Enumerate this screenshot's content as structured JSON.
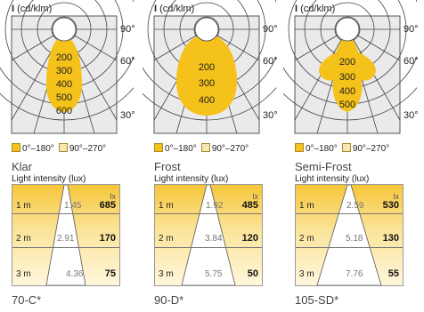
{
  "variants": [
    {
      "polar": {
        "unit_symbol": "I",
        "unit_text": "(cd/klm)",
        "angles": [
          "90°",
          "60°",
          "30°"
        ],
        "rings": [
          "200",
          "300",
          "400",
          "500",
          "600"
        ],
        "legend": [
          "0°–180°",
          "90°–270°"
        ],
        "colors": {
          "distribution": "#f4c21a",
          "background": "#eaeaea"
        }
      },
      "name": "Klar",
      "intensity": {
        "title": "Light intensity (lux)",
        "unit": "lx",
        "rows": [
          {
            "distance": "1 m",
            "diameter": "1.45",
            "lux": "685"
          },
          {
            "distance": "2 m",
            "diameter": "2.91",
            "lux": "170"
          },
          {
            "distance": "3 m",
            "diameter": "4.36",
            "lux": "75"
          }
        ]
      },
      "code": "70-C*"
    },
    {
      "polar": {
        "unit_symbol": "I",
        "unit_text": "(cd/klm)",
        "angles": [
          "90°",
          "60°",
          "30°"
        ],
        "rings": [
          "200",
          "300",
          "400"
        ],
        "legend": [
          "0°–180°",
          "90°–270°"
        ],
        "colors": {
          "distribution": "#f4c21a",
          "background": "#eaeaea"
        }
      },
      "name": "Frost",
      "intensity": {
        "title": "Light intensity (lux)",
        "unit": "lx",
        "rows": [
          {
            "distance": "1 m",
            "diameter": "1.92",
            "lux": "485"
          },
          {
            "distance": "2 m",
            "diameter": "3.84",
            "lux": "120"
          },
          {
            "distance": "3 m",
            "diameter": "5.75",
            "lux": "50"
          }
        ]
      },
      "code": "90-D*"
    },
    {
      "polar": {
        "unit_symbol": "I",
        "unit_text": "(cd/klm)",
        "angles": [
          "90°",
          "60°",
          "30°"
        ],
        "rings": [
          "200",
          "300",
          "400",
          "500"
        ],
        "legend": [
          "0°–180°",
          "90°–270°"
        ],
        "colors": {
          "distribution": "#f4c21a",
          "background": "#eaeaea"
        }
      },
      "name": "Semi-Frost",
      "intensity": {
        "title": "Light intensity (lux)",
        "unit": "lx",
        "rows": [
          {
            "distance": "1 m",
            "diameter": "2.59",
            "lux": "530"
          },
          {
            "distance": "2 m",
            "diameter": "5.18",
            "lux": "130"
          },
          {
            "distance": "3 m",
            "diameter": "7.76",
            "lux": "55"
          }
        ]
      },
      "code": "105-SD*"
    }
  ]
}
